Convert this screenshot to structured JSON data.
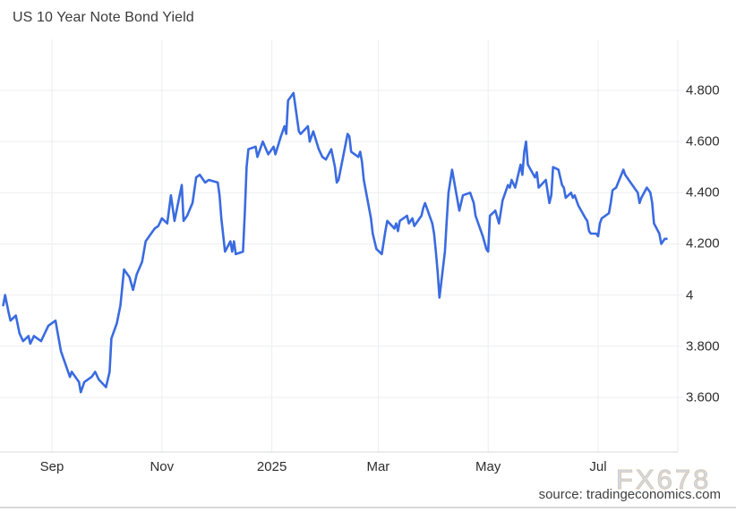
{
  "header": {
    "title": "US 10 Year Note Bond Yield"
  },
  "footer": {
    "watermark": "FX678",
    "source": "source: tradingeconomics.com"
  },
  "colors": {
    "line": "#3A6BE0",
    "grid": "#ECEEF0",
    "axis": "#D6DADD",
    "tick_text": "#2E2E2E",
    "watermark_fill": "#CCDCEF",
    "watermark_outline": "#D8C3AB"
  },
  "chart_data": {
    "type": "line",
    "title": "US 10 Year Note Bond Yield",
    "xlabel": "",
    "ylabel": "",
    "grid": true,
    "legend": "none",
    "ylim": [
      3.39,
      5.0
    ],
    "x_range": [
      "2024-08-05",
      "2025-08-08"
    ],
    "y_ticks": [
      {
        "value": 4.8,
        "label": "4.800"
      },
      {
        "value": 4.6,
        "label": "4.600"
      },
      {
        "value": 4.4,
        "label": "4.400"
      },
      {
        "value": 4.2,
        "label": "4.200"
      },
      {
        "value": 4.0,
        "label": "4"
      },
      {
        "value": 3.8,
        "label": "3.800"
      },
      {
        "value": 3.6,
        "label": "3.600"
      }
    ],
    "x_ticks": [
      {
        "date": "2024-09-01",
        "label": "Sep"
      },
      {
        "date": "2024-11-01",
        "label": "Nov"
      },
      {
        "date": "2025-01-01",
        "label": "2025"
      },
      {
        "date": "2025-03-01",
        "label": "Mar"
      },
      {
        "date": "2025-05-01",
        "label": "May"
      },
      {
        "date": "2025-07-01",
        "label": "Jul"
      }
    ],
    "series": [
      {
        "name": "US 10 Year Note Bond Yield",
        "points": [
          [
            "2024-08-05",
            3.96
          ],
          [
            "2024-08-06",
            4.0
          ],
          [
            "2024-08-08",
            3.93
          ],
          [
            "2024-08-09",
            3.9
          ],
          [
            "2024-08-12",
            3.92
          ],
          [
            "2024-08-14",
            3.85
          ],
          [
            "2024-08-16",
            3.82
          ],
          [
            "2024-08-19",
            3.84
          ],
          [
            "2024-08-20",
            3.81
          ],
          [
            "2024-08-22",
            3.84
          ],
          [
            "2024-08-26",
            3.82
          ],
          [
            "2024-08-28",
            3.85
          ],
          [
            "2024-08-30",
            3.88
          ],
          [
            "2024-09-03",
            3.9
          ],
          [
            "2024-09-04",
            3.86
          ],
          [
            "2024-09-06",
            3.78
          ],
          [
            "2024-09-09",
            3.72
          ],
          [
            "2024-09-11",
            3.68
          ],
          [
            "2024-09-12",
            3.7
          ],
          [
            "2024-09-16",
            3.66
          ],
          [
            "2024-09-17",
            3.62
          ],
          [
            "2024-09-19",
            3.66
          ],
          [
            "2024-09-23",
            3.68
          ],
          [
            "2024-09-25",
            3.7
          ],
          [
            "2024-09-27",
            3.67
          ],
          [
            "2024-10-01",
            3.64
          ],
          [
            "2024-10-03",
            3.7
          ],
          [
            "2024-10-04",
            3.83
          ],
          [
            "2024-10-07",
            3.89
          ],
          [
            "2024-10-09",
            3.96
          ],
          [
            "2024-10-11",
            4.1
          ],
          [
            "2024-10-14",
            4.07
          ],
          [
            "2024-10-16",
            4.02
          ],
          [
            "2024-10-18",
            4.08
          ],
          [
            "2024-10-21",
            4.13
          ],
          [
            "2024-10-23",
            4.21
          ],
          [
            "2024-10-25",
            4.23
          ],
          [
            "2024-10-28",
            4.26
          ],
          [
            "2024-10-30",
            4.27
          ],
          [
            "2024-11-01",
            4.3
          ],
          [
            "2024-11-04",
            4.28
          ],
          [
            "2024-11-06",
            4.39
          ],
          [
            "2024-11-08",
            4.29
          ],
          [
            "2024-11-12",
            4.43
          ],
          [
            "2024-11-13",
            4.29
          ],
          [
            "2024-11-15",
            4.31
          ],
          [
            "2024-11-18",
            4.36
          ],
          [
            "2024-11-20",
            4.46
          ],
          [
            "2024-11-22",
            4.47
          ],
          [
            "2024-11-25",
            4.44
          ],
          [
            "2024-11-27",
            4.45
          ],
          [
            "2024-12-02",
            4.44
          ],
          [
            "2024-12-03",
            4.39
          ],
          [
            "2024-12-04",
            4.3
          ],
          [
            "2024-12-06",
            4.17
          ],
          [
            "2024-12-09",
            4.21
          ],
          [
            "2024-12-10",
            4.17
          ],
          [
            "2024-12-11",
            4.21
          ],
          [
            "2024-12-12",
            4.16
          ],
          [
            "2024-12-16",
            4.17
          ],
          [
            "2024-12-17",
            4.32
          ],
          [
            "2024-12-18",
            4.5
          ],
          [
            "2024-12-19",
            4.57
          ],
          [
            "2024-12-23",
            4.58
          ],
          [
            "2024-12-24",
            4.54
          ],
          [
            "2024-12-27",
            4.6
          ],
          [
            "2024-12-30",
            4.55
          ],
          [
            "2025-01-02",
            4.58
          ],
          [
            "2025-01-03",
            4.55
          ],
          [
            "2025-01-06",
            4.62
          ],
          [
            "2025-01-08",
            4.66
          ],
          [
            "2025-01-09",
            4.63
          ],
          [
            "2025-01-10",
            4.76
          ],
          [
            "2025-01-13",
            4.79
          ],
          [
            "2025-01-15",
            4.69
          ],
          [
            "2025-01-16",
            4.64
          ],
          [
            "2025-01-17",
            4.63
          ],
          [
            "2025-01-21",
            4.66
          ],
          [
            "2025-01-22",
            4.6
          ],
          [
            "2025-01-24",
            4.64
          ],
          [
            "2025-01-27",
            4.57
          ],
          [
            "2025-01-29",
            4.54
          ],
          [
            "2025-01-31",
            4.53
          ],
          [
            "2025-02-03",
            4.57
          ],
          [
            "2025-02-05",
            4.5
          ],
          [
            "2025-02-06",
            4.44
          ],
          [
            "2025-02-07",
            4.45
          ],
          [
            "2025-02-12",
            4.63
          ],
          [
            "2025-02-13",
            4.62
          ],
          [
            "2025-02-14",
            4.56
          ],
          [
            "2025-02-18",
            4.54
          ],
          [
            "2025-02-19",
            4.56
          ],
          [
            "2025-02-20",
            4.52
          ],
          [
            "2025-02-21",
            4.45
          ],
          [
            "2025-02-25",
            4.3
          ],
          [
            "2025-02-26",
            4.24
          ],
          [
            "2025-02-28",
            4.18
          ],
          [
            "2025-03-03",
            4.16
          ],
          [
            "2025-03-05",
            4.25
          ],
          [
            "2025-03-06",
            4.29
          ],
          [
            "2025-03-10",
            4.26
          ],
          [
            "2025-03-11",
            4.28
          ],
          [
            "2025-03-12",
            4.25
          ],
          [
            "2025-03-13",
            4.29
          ],
          [
            "2025-03-17",
            4.31
          ],
          [
            "2025-03-18",
            4.28
          ],
          [
            "2025-03-20",
            4.3
          ],
          [
            "2025-03-21",
            4.27
          ],
          [
            "2025-03-25",
            4.31
          ],
          [
            "2025-03-26",
            4.34
          ],
          [
            "2025-03-27",
            4.36
          ],
          [
            "2025-03-31",
            4.28
          ],
          [
            "2025-04-01",
            4.24
          ],
          [
            "2025-04-02",
            4.17
          ],
          [
            "2025-04-03",
            4.09
          ],
          [
            "2025-04-04",
            3.99
          ],
          [
            "2025-04-07",
            4.17
          ],
          [
            "2025-04-08",
            4.29
          ],
          [
            "2025-04-09",
            4.4
          ],
          [
            "2025-04-11",
            4.49
          ],
          [
            "2025-04-15",
            4.33
          ],
          [
            "2025-04-17",
            4.39
          ],
          [
            "2025-04-21",
            4.4
          ],
          [
            "2025-04-23",
            4.36
          ],
          [
            "2025-04-24",
            4.31
          ],
          [
            "2025-04-28",
            4.23
          ],
          [
            "2025-04-30",
            4.18
          ],
          [
            "2025-05-01",
            4.17
          ],
          [
            "2025-05-02",
            4.31
          ],
          [
            "2025-05-05",
            4.33
          ],
          [
            "2025-05-07",
            4.28
          ],
          [
            "2025-05-09",
            4.37
          ],
          [
            "2025-05-12",
            4.43
          ],
          [
            "2025-05-13",
            4.42
          ],
          [
            "2025-05-14",
            4.45
          ],
          [
            "2025-05-16",
            4.42
          ],
          [
            "2025-05-19",
            4.51
          ],
          [
            "2025-05-20",
            4.47
          ],
          [
            "2025-05-21",
            4.56
          ],
          [
            "2025-05-22",
            4.6
          ],
          [
            "2025-05-23",
            4.51
          ],
          [
            "2025-05-27",
            4.46
          ],
          [
            "2025-05-28",
            4.48
          ],
          [
            "2025-05-29",
            4.42
          ],
          [
            "2025-06-02",
            4.45
          ],
          [
            "2025-06-04",
            4.36
          ],
          [
            "2025-06-05",
            4.39
          ],
          [
            "2025-06-06",
            4.5
          ],
          [
            "2025-06-09",
            4.49
          ],
          [
            "2025-06-11",
            4.43
          ],
          [
            "2025-06-12",
            4.42
          ],
          [
            "2025-06-13",
            4.38
          ],
          [
            "2025-06-16",
            4.4
          ],
          [
            "2025-06-17",
            4.38
          ],
          [
            "2025-06-18",
            4.39
          ],
          [
            "2025-06-20",
            4.35
          ],
          [
            "2025-06-24",
            4.3
          ],
          [
            "2025-06-25",
            4.29
          ],
          [
            "2025-06-26",
            4.25
          ],
          [
            "2025-06-27",
            4.24
          ],
          [
            "2025-06-30",
            4.24
          ],
          [
            "2025-07-01",
            4.23
          ],
          [
            "2025-07-02",
            4.28
          ],
          [
            "2025-07-03",
            4.3
          ],
          [
            "2025-07-07",
            4.32
          ],
          [
            "2025-07-08",
            4.36
          ],
          [
            "2025-07-09",
            4.41
          ],
          [
            "2025-07-11",
            4.42
          ],
          [
            "2025-07-15",
            4.49
          ],
          [
            "2025-07-16",
            4.47
          ],
          [
            "2025-07-18",
            4.45
          ],
          [
            "2025-07-22",
            4.41
          ],
          [
            "2025-07-23",
            4.4
          ],
          [
            "2025-07-24",
            4.36
          ],
          [
            "2025-07-25",
            4.38
          ],
          [
            "2025-07-28",
            4.42
          ],
          [
            "2025-07-30",
            4.4
          ],
          [
            "2025-07-31",
            4.36
          ],
          [
            "2025-08-01",
            4.28
          ],
          [
            "2025-08-04",
            4.24
          ],
          [
            "2025-08-05",
            4.2
          ],
          [
            "2025-08-06",
            4.21
          ],
          [
            "2025-08-07",
            4.22
          ],
          [
            "2025-08-08",
            4.22
          ]
        ]
      }
    ]
  }
}
